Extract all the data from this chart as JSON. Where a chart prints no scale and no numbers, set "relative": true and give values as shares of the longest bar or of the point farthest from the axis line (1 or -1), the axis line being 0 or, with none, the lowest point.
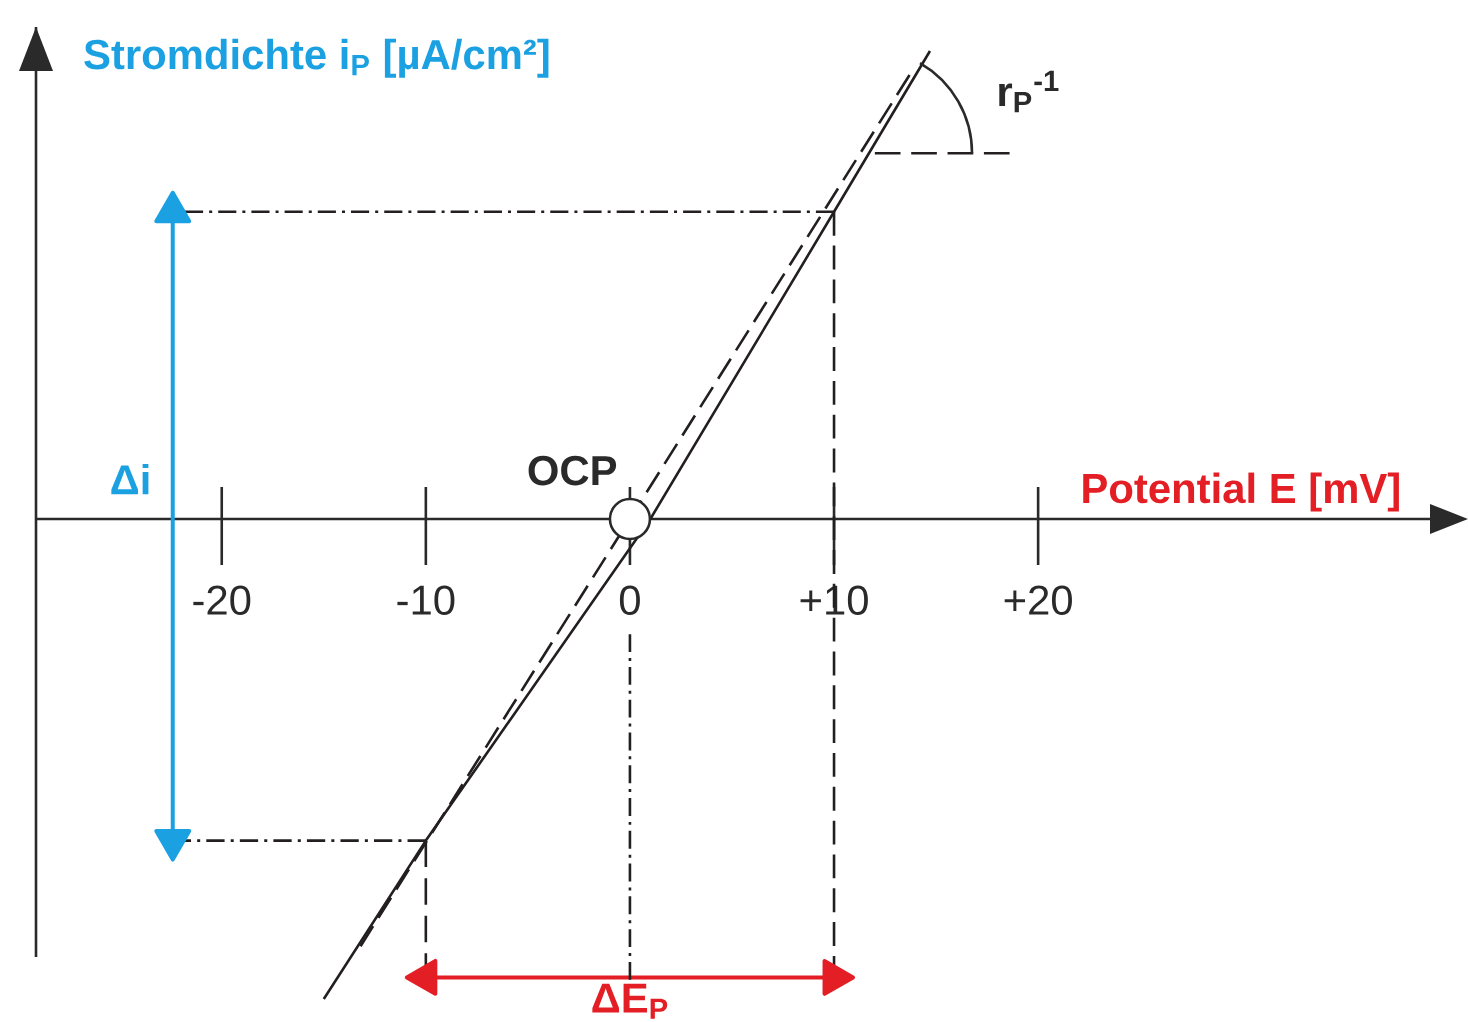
{
  "chart_data": {
    "type": "line",
    "relative": true,
    "xlabel": "Potential E [mV]",
    "ylabel": "Stromdichte i$_{P}$ [µA/cm²]",
    "xlim": [
      -29.1,
      39.2
    ],
    "xticks": [
      -20,
      -10,
      0,
      {
        "value": 10,
        "label": "+10"
      },
      {
        "value": 20,
        "label": "+20"
      }
    ],
    "series": [
      {
        "name": "Δi",
        "color": "#1ba1e2",
        "line_style": "solid",
        "marker": "triangle",
        "x": [
          -22.4,
          -22.4
        ],
        "values": [
          0.64,
          -0.67
        ]
      },
      {
        "name": "ΔE$_{P}$",
        "color": "#e31e24",
        "line_style": "solid",
        "marker": "triangle",
        "x": [
          -10,
          10
        ],
        "values": [
          -0.955,
          -0.955
        ]
      },
      {
        "color": "#231f20",
        "line_style": "dashdot",
        "x": [
          -21.8,
          10
        ],
        "values": [
          0.64,
          0.64
        ]
      },
      {
        "color": "#231f20",
        "line_style": "dashdot",
        "x": [
          -22.4,
          -10
        ],
        "values": [
          -0.67,
          -0.67
        ]
      },
      {
        "color": "#231f20",
        "line_style": "dashed",
        "x": [
          10,
          10
        ],
        "values": [
          0.64,
          -0.96
        ]
      },
      {
        "color": "#231f20",
        "line_style": "dashed",
        "x": [
          -10,
          -10
        ],
        "values": [
          -0.67,
          -0.96
        ]
      },
      {
        "color": "#231f20",
        "line_style": "dashdot",
        "x": [
          0,
          0
        ],
        "values": [
          -0.24,
          -0.96
        ]
      },
      {
        "color": "#231f20",
        "line_style": "dashed",
        "x": [
          12.0,
          18.6
        ],
        "values": [
          0.762,
          0.762
        ]
      },
      {
        "color": "#231f20",
        "line_style": "dashed",
        "x": [
          -13.2,
          13.7
        ],
        "values": [
          -0.89,
          0.925
        ]
      },
      {
        "color": "#231f20",
        "line_style": "solid",
        "x": [
          -15.0,
          -10,
          1.0,
          10,
          14.7
        ],
        "values": [
          -1,
          -0.67,
          0,
          0.64,
          0.975
        ]
      },
      {
        "type": "scatter",
        "name": "OCP",
        "marker": "circle",
        "color": "#ffffff",
        "x": [
          0
        ],
        "values": [
          0
        ]
      }
    ],
    "annotations": [
      "r$_{P}$$^{-1}$"
    ]
  }
}
